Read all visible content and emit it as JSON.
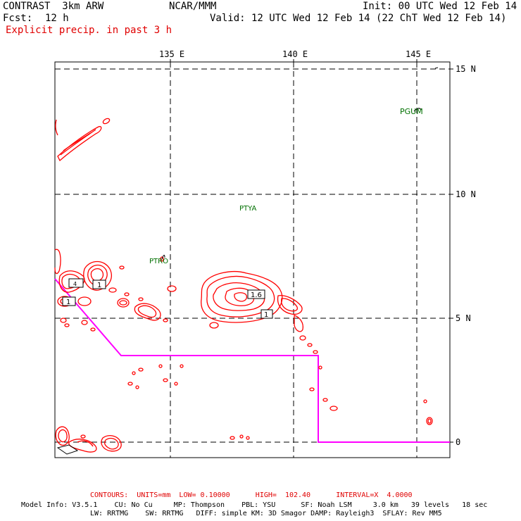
{
  "header": {
    "model": "CONTRAST  3km ARW",
    "org": "NCAR/MMM",
    "init": "Init: 00 UTC Wed 12 Feb 14",
    "fcst_label": "Fcst:",
    "fcst_value": "12 h",
    "valid": "Valid: 12 UTC Wed 12 Feb 14 (22 ChT Wed 12 Feb 14)",
    "field": "Explicit precip. in past 3 h"
  },
  "map": {
    "lon_labels": [
      "135 E",
      "140 E",
      "145 E"
    ],
    "lat_labels": [
      "15 N",
      "10 N",
      "5 N",
      "0"
    ],
    "stations": [
      "PGUM",
      "PTYA",
      "PTRO"
    ],
    "max_labels": [
      "4",
      "1",
      "1",
      "1.6",
      "1"
    ],
    "colors": {
      "precip": "#ff0000",
      "boundary": "#ff00ff",
      "grid": "#000000",
      "station": "#007000"
    }
  },
  "footer": {
    "contours": "CONTOURS:  UNITS=mm  LOW= 0.10000      HIGH=  102.40      INTERVAL=X  4.0000",
    "line1": "Model Info: V3.5.1    CU: No Cu     MP: Thompson    PBL: YSU      SF: Noah LSM     3.0 km   39 levels   18 sec",
    "line2": "LW: RRTMG    SW: RRTMG   DIFF: simple KM: 3D Smagor DAMP: Rayleigh3  SFLAY: Rev MM5"
  }
}
